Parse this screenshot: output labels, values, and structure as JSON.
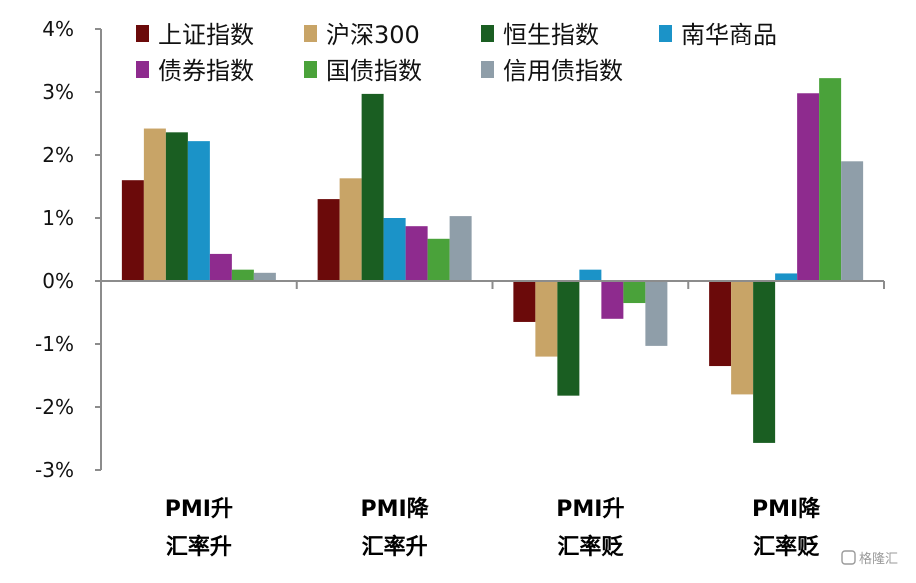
{
  "chart_data": {
    "type": "bar",
    "title": "",
    "xlabel": "",
    "ylabel": "",
    "ylim": [
      -3,
      4
    ],
    "yticks": [
      4,
      3,
      2,
      1,
      0,
      -1,
      -2,
      -3
    ],
    "ytick_labels": [
      "4%",
      "3%",
      "2%",
      "1%",
      "0%",
      "-1%",
      "-2%",
      "-3%"
    ],
    "grid": false,
    "legend_position": "top",
    "categories": [
      {
        "line1": "PMI升",
        "line2": "汇率升"
      },
      {
        "line1": "PMI降",
        "line2": "汇率升"
      },
      {
        "line1": "PMI升",
        "line2": "汇率贬"
      },
      {
        "line1": "PMI降",
        "line2": "汇率贬"
      }
    ],
    "series": [
      {
        "name": "上证指数",
        "color": "#6b0a0a",
        "values": [
          1.6,
          1.3,
          -0.65,
          -1.35
        ]
      },
      {
        "name": "沪深300",
        "color": "#c8a467",
        "values": [
          2.42,
          1.63,
          -1.2,
          -1.8
        ]
      },
      {
        "name": "恒生指数",
        "color": "#1a5e22",
        "values": [
          2.36,
          2.97,
          -1.82,
          -2.57
        ]
      },
      {
        "name": "南华商品",
        "color": "#1b93c8",
        "values": [
          2.22,
          1.0,
          0.18,
          0.12
        ]
      },
      {
        "name": "债券指数",
        "color": "#8e2b8e",
        "values": [
          0.43,
          0.87,
          -0.6,
          2.98
        ]
      },
      {
        "name": "国债指数",
        "color": "#4aa23a",
        "values": [
          0.18,
          0.67,
          -0.35,
          3.22
        ]
      },
      {
        "name": "信用债指数",
        "color": "#8f9ea9",
        "values": [
          0.13,
          1.03,
          -1.03,
          1.9
        ]
      }
    ]
  },
  "watermark": {
    "text": "格隆汇"
  }
}
